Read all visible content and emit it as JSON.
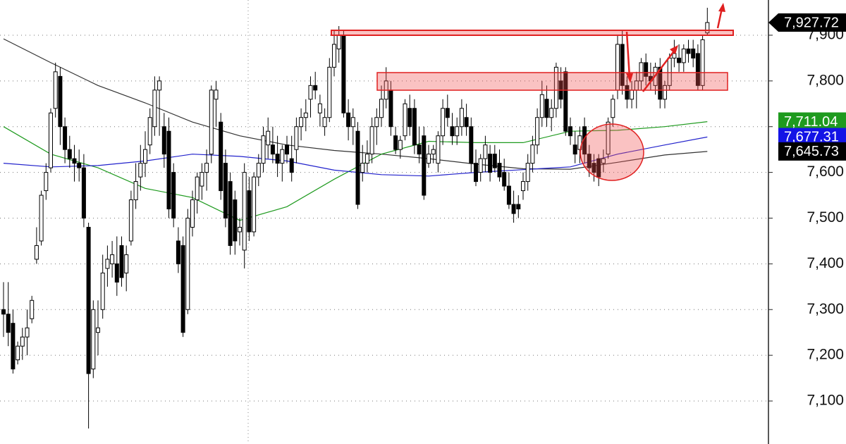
{
  "chart_data": {
    "type": "candlestick",
    "ohlc": [
      [
        7300,
        7360,
        7240,
        7290
      ],
      [
        7290,
        7360,
        7220,
        7250
      ],
      [
        7270,
        7300,
        7160,
        7170
      ],
      [
        7190,
        7230,
        7180,
        7220
      ],
      [
        7220,
        7260,
        7190,
        7240
      ],
      [
        7240,
        7300,
        7200,
        7260
      ],
      [
        7280,
        7330,
        7270,
        7320
      ],
      [
        7410,
        7480,
        7400,
        7440
      ],
      [
        7450,
        7560,
        7440,
        7550
      ],
      [
        7560,
        7620,
        7540,
        7600
      ],
      [
        7610,
        7740,
        7600,
        7730
      ],
      [
        7740,
        7840,
        7720,
        7820
      ],
      [
        7810,
        7830,
        7660,
        7700
      ],
      [
        7700,
        7720,
        7620,
        7650
      ],
      [
        7650,
        7680,
        7610,
        7630
      ],
      [
        7630,
        7660,
        7580,
        7620
      ],
      [
        7620,
        7650,
        7580,
        7610
      ],
      [
        7610,
        7640,
        7480,
        7500
      ],
      [
        7480,
        7490,
        7040,
        7160
      ],
      [
        7170,
        7320,
        7150,
        7300
      ],
      [
        7250,
        7320,
        7200,
        7260
      ],
      [
        7300,
        7420,
        7280,
        7380
      ],
      [
        7390,
        7440,
        7350,
        7410
      ],
      [
        7400,
        7450,
        7370,
        7420
      ],
      [
        7400,
        7460,
        7330,
        7360
      ],
      [
        7440,
        7460,
        7350,
        7370
      ],
      [
        7380,
        7440,
        7340,
        7420
      ],
      [
        7450,
        7560,
        7440,
        7540
      ],
      [
        7540,
        7620,
        7520,
        7580
      ],
      [
        7590,
        7660,
        7560,
        7620
      ],
      [
        7620,
        7690,
        7590,
        7650
      ],
      [
        7660,
        7740,
        7640,
        7720
      ],
      [
        7700,
        7810,
        7680,
        7780
      ],
      [
        7780,
        7810,
        7680,
        7800
      ],
      [
        7700,
        7730,
        7610,
        7640
      ],
      [
        7690,
        7720,
        7500,
        7520
      ],
      [
        7600,
        7620,
        7480,
        7500
      ],
      [
        7450,
        7480,
        7380,
        7400
      ],
      [
        7440,
        7460,
        7240,
        7250
      ],
      [
        7300,
        7520,
        7290,
        7500
      ],
      [
        7480,
        7560,
        7460,
        7540
      ],
      [
        7540,
        7600,
        7510,
        7590
      ],
      [
        7570,
        7620,
        7540,
        7600
      ],
      [
        7600,
        7650,
        7560,
        7620
      ],
      [
        7640,
        7790,
        7620,
        7780
      ],
      [
        7760,
        7800,
        7700,
        7780
      ],
      [
        7710,
        7730,
        7540,
        7560
      ],
      [
        7620,
        7650,
        7480,
        7500
      ],
      [
        7580,
        7600,
        7420,
        7440
      ],
      [
        7540,
        7560,
        7420,
        7450
      ],
      [
        7470,
        7500,
        7440,
        7480
      ],
      [
        7430,
        7620,
        7390,
        7600
      ],
      [
        7560,
        7590,
        7450,
        7470
      ],
      [
        7470,
        7600,
        7460,
        7590
      ],
      [
        7590,
        7640,
        7570,
        7620
      ],
      [
        7620,
        7700,
        7600,
        7680
      ],
      [
        7660,
        7720,
        7630,
        7690
      ],
      [
        7660,
        7700,
        7620,
        7640
      ],
      [
        7640,
        7680,
        7590,
        7620
      ],
      [
        7620,
        7660,
        7580,
        7650
      ],
      [
        7660,
        7680,
        7620,
        7640
      ],
      [
        7630,
        7680,
        7580,
        7600
      ],
      [
        7650,
        7720,
        7620,
        7700
      ],
      [
        7700,
        7740,
        7670,
        7720
      ],
      [
        7720,
        7760,
        7690,
        7730
      ],
      [
        7760,
        7810,
        7720,
        7790
      ],
      [
        7790,
        7820,
        7760,
        7780
      ],
      [
        7730,
        7770,
        7700,
        7750
      ],
      [
        7700,
        7740,
        7680,
        7720
      ],
      [
        7720,
        7850,
        7710,
        7830
      ],
      [
        7830,
        7910,
        7810,
        7880
      ],
      [
        7870,
        7920,
        7840,
        7900
      ],
      [
        7900,
        7910,
        7720,
        7730
      ],
      [
        7730,
        7760,
        7670,
        7700
      ],
      [
        7700,
        7740,
        7660,
        7720
      ],
      [
        7690,
        7710,
        7520,
        7530
      ],
      [
        7600,
        7660,
        7580,
        7620
      ],
      [
        7620,
        7670,
        7600,
        7640
      ],
      [
        7640,
        7720,
        7620,
        7700
      ],
      [
        7700,
        7740,
        7660,
        7720
      ],
      [
        7720,
        7790,
        7700,
        7760
      ],
      [
        7760,
        7830,
        7740,
        7800
      ],
      [
        7780,
        7800,
        7680,
        7700
      ],
      [
        7680,
        7700,
        7640,
        7650
      ],
      [
        7650,
        7680,
        7630,
        7670
      ],
      [
        7680,
        7760,
        7670,
        7750
      ],
      [
        7740,
        7770,
        7680,
        7700
      ],
      [
        7740,
        7760,
        7640,
        7660
      ],
      [
        7660,
        7700,
        7620,
        7640
      ],
      [
        7680,
        7700,
        7540,
        7550
      ],
      [
        7620,
        7660,
        7610,
        7640
      ],
      [
        7640,
        7660,
        7620,
        7650
      ],
      [
        7620,
        7690,
        7600,
        7680
      ],
      [
        7680,
        7760,
        7660,
        7740
      ],
      [
        7740,
        7770,
        7700,
        7720
      ],
      [
        7700,
        7730,
        7660,
        7680
      ],
      [
        7680,
        7720,
        7660,
        7700
      ],
      [
        7700,
        7760,
        7680,
        7740
      ],
      [
        7720,
        7750,
        7680,
        7700
      ],
      [
        7700,
        7720,
        7600,
        7620
      ],
      [
        7620,
        7650,
        7570,
        7580
      ],
      [
        7600,
        7640,
        7580,
        7630
      ],
      [
        7630,
        7680,
        7600,
        7660
      ],
      [
        7640,
        7660,
        7580,
        7600
      ],
      [
        7640,
        7660,
        7600,
        7610
      ],
      [
        7620,
        7650,
        7580,
        7590
      ],
      [
        7600,
        7630,
        7560,
        7570
      ],
      [
        7570,
        7600,
        7520,
        7530
      ],
      [
        7530,
        7560,
        7490,
        7510
      ],
      [
        7530,
        7550,
        7500,
        7520
      ],
      [
        7560,
        7600,
        7540,
        7580
      ],
      [
        7580,
        7640,
        7560,
        7620
      ],
      [
        7620,
        7680,
        7600,
        7660
      ],
      [
        7660,
        7740,
        7640,
        7720
      ],
      [
        7720,
        7800,
        7700,
        7770
      ],
      [
        7760,
        7790,
        7700,
        7720
      ],
      [
        7720,
        7760,
        7690,
        7740
      ],
      [
        7740,
        7840,
        7720,
        7830
      ],
      [
        7800,
        7830,
        7740,
        7760
      ],
      [
        7820,
        7830,
        7680,
        7690
      ],
      [
        7700,
        7720,
        7660,
        7680
      ],
      [
        7660,
        7690,
        7620,
        7640
      ],
      [
        7650,
        7700,
        7620,
        7680
      ],
      [
        7700,
        7720,
        7620,
        7640
      ],
      [
        7640,
        7660,
        7590,
        7610
      ],
      [
        7620,
        7640,
        7580,
        7600
      ],
      [
        7630,
        7640,
        7570,
        7590
      ],
      [
        7620,
        7650,
        7600,
        7630
      ],
      [
        7640,
        7720,
        7630,
        7710
      ],
      [
        7720,
        7770,
        7700,
        7760
      ],
      [
        7780,
        7900,
        7760,
        7880
      ],
      [
        7880,
        7910,
        7770,
        7790
      ],
      [
        7790,
        7810,
        7740,
        7760
      ],
      [
        7760,
        7800,
        7740,
        7780
      ],
      [
        7780,
        7820,
        7740,
        7800
      ],
      [
        7800,
        7850,
        7780,
        7840
      ],
      [
        7840,
        7860,
        7790,
        7810
      ],
      [
        7810,
        7840,
        7780,
        7800
      ],
      [
        7790,
        7840,
        7770,
        7830
      ],
      [
        7830,
        7850,
        7740,
        7760
      ],
      [
        7760,
        7800,
        7740,
        7790
      ],
      [
        7790,
        7860,
        7780,
        7850
      ],
      [
        7850,
        7890,
        7830,
        7860
      ],
      [
        7850,
        7880,
        7820,
        7840
      ],
      [
        7840,
        7880,
        7820,
        7870
      ],
      [
        7870,
        7890,
        7840,
        7860
      ],
      [
        7870,
        7890,
        7830,
        7850
      ],
      [
        7860,
        7880,
        7780,
        7790
      ],
      [
        7790,
        7900,
        7780,
        7890
      ],
      [
        7905,
        7960,
        7900,
        7927.72
      ]
    ],
    "series": [
      {
        "color": "#333333",
        "x": [
          0,
          10,
          20,
          30,
          40,
          50,
          60,
          70,
          80,
          90,
          100,
          110,
          120,
          130,
          140,
          149
        ],
        "values": [
          7892,
          7840,
          7790,
          7752,
          7710,
          7680,
          7660,
          7648,
          7640,
          7630,
          7618,
          7608,
          7607,
          7622,
          7638,
          7645.73
        ]
      },
      {
        "color": "#1e9a1e",
        "x": [
          0,
          10,
          20,
          30,
          40,
          50,
          60,
          70,
          80,
          90,
          100,
          110,
          120,
          130,
          140,
          149
        ],
        "values": [
          7700,
          7640,
          7610,
          7565,
          7545,
          7495,
          7525,
          7585,
          7640,
          7668,
          7665,
          7665,
          7690,
          7692,
          7700,
          7711.04
        ]
      },
      {
        "color": "#2222cc",
        "x": [
          0,
          10,
          20,
          30,
          40,
          50,
          60,
          70,
          80,
          90,
          100,
          110,
          120,
          130,
          140,
          149
        ],
        "values": [
          7620,
          7612,
          7615,
          7625,
          7640,
          7635,
          7625,
          7605,
          7595,
          7592,
          7600,
          7606,
          7612,
          7640,
          7660,
          7677.31
        ]
      }
    ],
    "price_tags": [
      {
        "value": 7927.72,
        "label": "7,927.72",
        "color": "#000000"
      },
      {
        "value": 7711.04,
        "label": "7,711.04",
        "color": "#1e9a1e"
      },
      {
        "value": 7677.31,
        "label": "7,677.31",
        "color": "#1414e6"
      },
      {
        "value": 7645.73,
        "label": "7,645.73",
        "color": "#000000"
      }
    ],
    "ylim": [
      7006,
      7977
    ],
    "yticks": [
      {
        "value": 7100,
        "label": "7,100"
      },
      {
        "value": 7200,
        "label": "7,200"
      },
      {
        "value": 7300,
        "label": "7,300"
      },
      {
        "value": 7400,
        "label": "7,400"
      },
      {
        "value": 7500,
        "label": "7,500"
      },
      {
        "value": 7600,
        "label": "7,600"
      },
      {
        "value": 7700,
        "label": "7,700"
      },
      {
        "value": 7800,
        "label": "7,800"
      },
      {
        "value": 7900,
        "label": "7,900"
      }
    ],
    "grid": true
  }
}
